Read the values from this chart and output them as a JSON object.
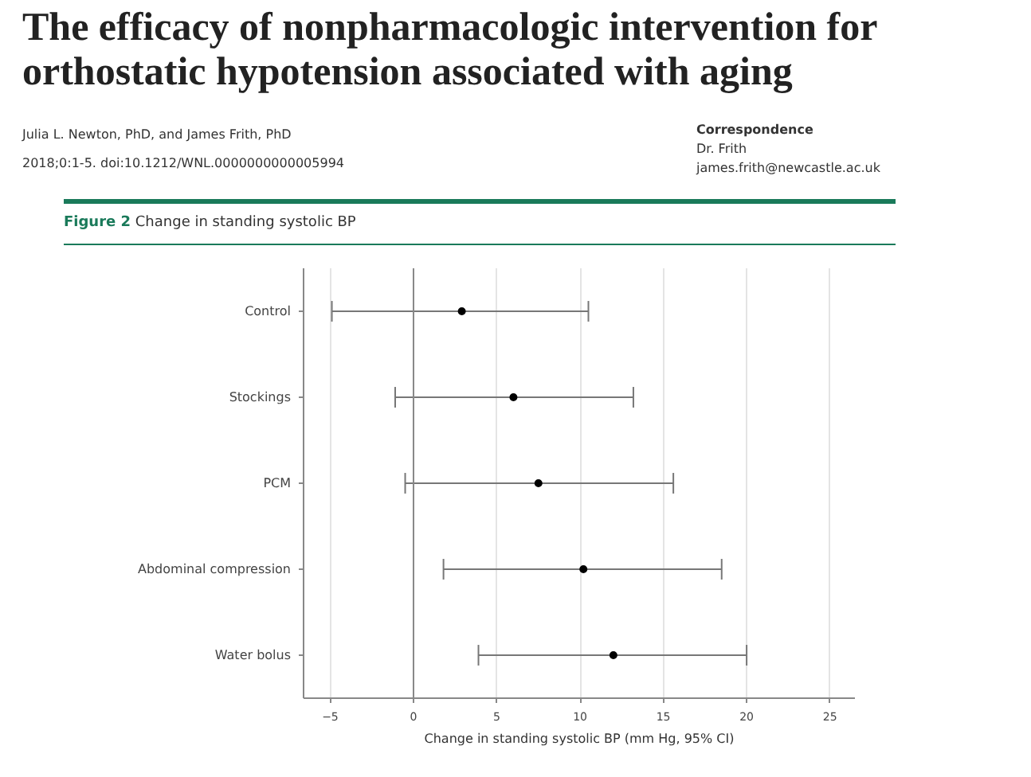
{
  "chart_data": {
    "type": "scatter",
    "orientation": "horizontal",
    "title": "Change in standing systolic BP",
    "xlabel": "Change in standing systolic BP (mm Hg, 95% CI)",
    "annotations": [
      "The efficacy of nonpharmacologic intervention for orthostatic hypotension associated with aging",
      "Julia L. Newton, PhD, and James Frith, PhD",
      "2018;0:1-5. doi:10.1212/WNL.0000000000005994",
      "Correspondence",
      "Dr. Frith",
      "james.frith@newcastle.ac.uk",
      "Figure 2"
    ],
    "categories": [
      "Control",
      "Stockings",
      "PCM",
      "Abdominal compression",
      "Water bolus"
    ],
    "series": [
      {
        "color": "#000000",
        "values": [
          2.9,
          6.0,
          7.5,
          10.2,
          12.0
        ],
        "errors": [
          [
            -4.9,
            10.5
          ],
          [
            -1.1,
            13.2
          ],
          [
            -0.5,
            15.6
          ],
          [
            1.8,
            18.5
          ],
          [
            3.9,
            20.0
          ]
        ]
      }
    ],
    "xlim": [
      -6.6,
      26.5
    ],
    "xticks": [
      -5,
      0,
      5,
      10,
      15,
      20,
      25
    ],
    "ref_lines": [
      {
        "axis": "x",
        "value": 0,
        "color": "#888888"
      }
    ],
    "grid": "x",
    "marker": "circle"
  }
}
